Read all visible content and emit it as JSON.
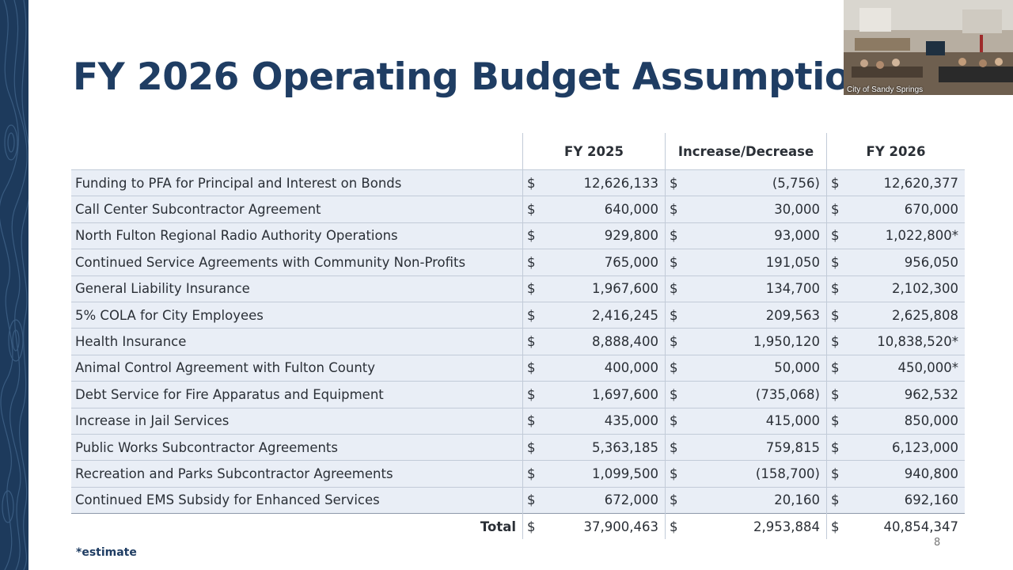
{
  "slide": {
    "title": "FY 2026 Operating Budget Assumptions",
    "footnote": "*estimate",
    "page_number": "8"
  },
  "video": {
    "caption": "City of Sandy Springs"
  },
  "table": {
    "headers": [
      "",
      "FY 2025",
      "Increase/Decrease",
      "FY 2026"
    ],
    "currency_symbol": "$",
    "rows": [
      {
        "label": "Funding to PFA for Principal and Interest on Bonds",
        "fy2025": "12,626,133",
        "change": "(5,756)",
        "fy2026": "12,620,377"
      },
      {
        "label": "Call Center Subcontractor Agreement",
        "fy2025": "640,000",
        "change": "30,000",
        "fy2026": "670,000"
      },
      {
        "label": "North Fulton Regional Radio Authority Operations",
        "fy2025": "929,800",
        "change": "93,000",
        "fy2026": "1,022,800*"
      },
      {
        "label": "Continued Service Agreements with Community Non-Profits",
        "fy2025": "765,000",
        "change": "191,050",
        "fy2026": "956,050"
      },
      {
        "label": "General Liability Insurance",
        "fy2025": "1,967,600",
        "change": "134,700",
        "fy2026": "2,102,300"
      },
      {
        "label": "5% COLA for City Employees",
        "fy2025": "2,416,245",
        "change": "209,563",
        "fy2026": "2,625,808"
      },
      {
        "label": "Health Insurance",
        "fy2025": "8,888,400",
        "change": "1,950,120",
        "fy2026": "10,838,520*"
      },
      {
        "label": "Animal Control Agreement with Fulton County",
        "fy2025": "400,000",
        "change": "50,000",
        "fy2026": "450,000*"
      },
      {
        "label": "Debt Service for Fire Apparatus and Equipment",
        "fy2025": "1,697,600",
        "change": "(735,068)",
        "fy2026": "962,532"
      },
      {
        "label": "Increase in Jail Services",
        "fy2025": "435,000",
        "change": "415,000",
        "fy2026": "850,000"
      },
      {
        "label": "Public Works Subcontractor Agreements",
        "fy2025": "5,363,185",
        "change": "759,815",
        "fy2026": "6,123,000"
      },
      {
        "label": "Recreation and Parks Subcontractor Agreements",
        "fy2025": "1,099,500",
        "change": "(158,700)",
        "fy2026": "940,800"
      },
      {
        "label": "Continued EMS Subsidy for Enhanced Services",
        "fy2025": "672,000",
        "change": "20,160",
        "fy2026": "692,160"
      }
    ],
    "total": {
      "label": "Total",
      "fy2025": "37,900,463",
      "change": "2,953,884",
      "fy2026": "40,854,347"
    }
  },
  "colors": {
    "title": "#1f3d63",
    "band": "#1d3a5c",
    "row_fill": "#e9eef6"
  }
}
